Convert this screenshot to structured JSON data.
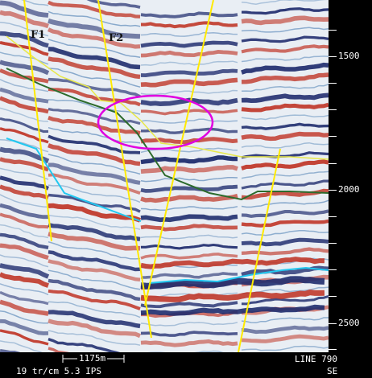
{
  "section": {
    "fault_labels": [
      "F1",
      "F2"
    ],
    "colors": {
      "background": "#e9eef4",
      "positive": "#c0392b",
      "negative": "#1f2c6e",
      "fault": "#ffea00",
      "horizon_yellow": "#e8e84a",
      "horizon_green": "#2c6b2c",
      "horizon_cyan": "#22c8f0",
      "highlight": "#e000e0"
    }
  },
  "time_axis": {
    "ticks": [
      "1500",
      "2000",
      "2500"
    ],
    "color": "#000000"
  },
  "footer": {
    "scale_bar": "1175m",
    "trace_info": "19 tr/cm 5.3 IPS",
    "line_label": "LINE 790",
    "direction": "SE"
  }
}
